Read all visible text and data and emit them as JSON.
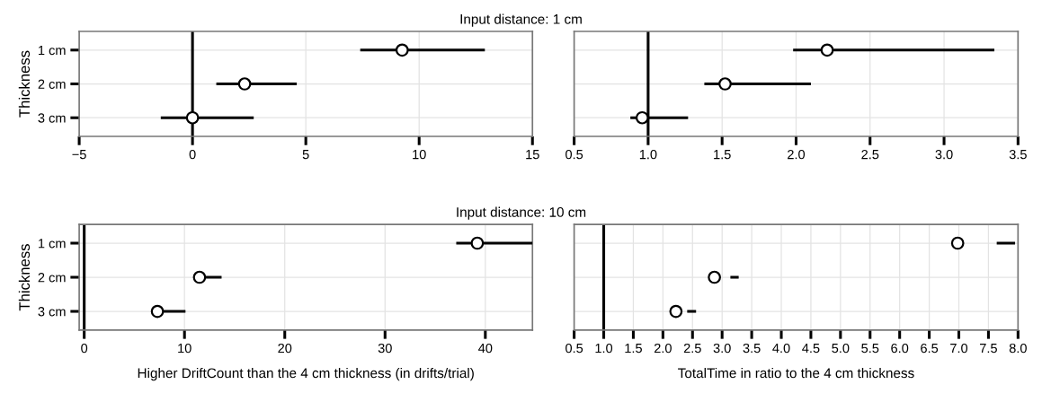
{
  "chart_data": [
    {
      "type": "scatter",
      "orientation": "horizontal",
      "title": "Input distance: 1 cm",
      "ylabel": "Thickness",
      "categories": [
        "1 cm",
        "2 cm",
        "3 cm"
      ],
      "color": "#000000",
      "values": [
        9.25,
        2.3,
        0.0
      ],
      "errors": [
        [
          7.4,
          12.9
        ],
        [
          1.05,
          4.6
        ],
        [
          -1.4,
          2.7
        ]
      ],
      "xlim": [
        -5,
        15
      ],
      "xticks": [
        {
          "value": -5,
          "label": "−5"
        },
        0,
        5,
        10,
        15
      ],
      "grid": true,
      "marker": "circle",
      "ref_lines": [
        {
          "axis": "x",
          "value": 0,
          "color": "#000000"
        }
      ]
    },
    {
      "type": "scatter",
      "orientation": "horizontal",
      "categories": [
        null,
        null,
        null
      ],
      "color": "#000000",
      "values": [
        2.21,
        1.52,
        0.96
      ],
      "errors": [
        [
          1.98,
          3.34
        ],
        [
          1.38,
          2.1
        ],
        [
          0.88,
          1.27
        ]
      ],
      "xlim": [
        0.5,
        3.5
      ],
      "xticks": [
        0.5,
        {
          "value": 1,
          "label": "1.0"
        },
        1.5,
        {
          "value": 2,
          "label": "2.0"
        },
        2.5,
        {
          "value": 3,
          "label": "3.0"
        },
        3.5
      ],
      "grid": true,
      "marker": "circle",
      "tick_labels": "x",
      "ref_lines": [
        {
          "axis": "x",
          "value": 1,
          "color": "#000000"
        }
      ]
    },
    {
      "type": "scatter",
      "orientation": "horizontal",
      "title": "Input distance: 10 cm",
      "xlabel": "Higher DriftCount than the 4 cm thickness (in drifts/trial)",
      "ylabel": "Thickness",
      "categories": [
        "1 cm",
        "2 cm",
        "3 cm"
      ],
      "color": "#000000",
      "values": [
        39.2,
        11.5,
        7.3
      ],
      "errors": [
        [
          37.1,
          44.7
        ],
        [
          11.5,
          13.7
        ],
        [
          7.3,
          10.1
        ]
      ],
      "xlim": [
        -0.5,
        44.7
      ],
      "xticks": [
        0,
        10,
        20,
        30,
        40
      ],
      "grid": true,
      "marker": "circle",
      "ref_lines": [
        {
          "axis": "x",
          "value": 0,
          "color": "#000000"
        }
      ]
    },
    {
      "type": "scatter",
      "orientation": "horizontal",
      "xlabel": "TotalTime in ratio to the 4 cm thickness",
      "categories": [
        null,
        null,
        null
      ],
      "color": "#000000",
      "values": [
        6.98,
        2.87,
        2.22
      ],
      "errors": [
        [
          7.64,
          7.95
        ],
        [
          3.14,
          3.28
        ],
        [
          2.41,
          2.56
        ]
      ],
      "xlim": [
        0.5,
        8
      ],
      "xticks": [
        0.5,
        {
          "value": 1,
          "label": "1.0"
        },
        1.5,
        {
          "value": 2,
          "label": "2.0"
        },
        2.5,
        {
          "value": 3,
          "label": "3.0"
        },
        3.5,
        {
          "value": 4,
          "label": "4.0"
        },
        4.5,
        {
          "value": 5,
          "label": "5.0"
        },
        5.5,
        {
          "value": 6,
          "label": "6.0"
        },
        6.5,
        {
          "value": 7,
          "label": "7.0"
        },
        7.5,
        {
          "value": 8,
          "label": "8.0"
        }
      ],
      "grid": true,
      "marker": "circle",
      "tick_labels": "x",
      "ref_lines": [
        {
          "axis": "x",
          "value": 1,
          "color": "#000000"
        }
      ]
    }
  ]
}
